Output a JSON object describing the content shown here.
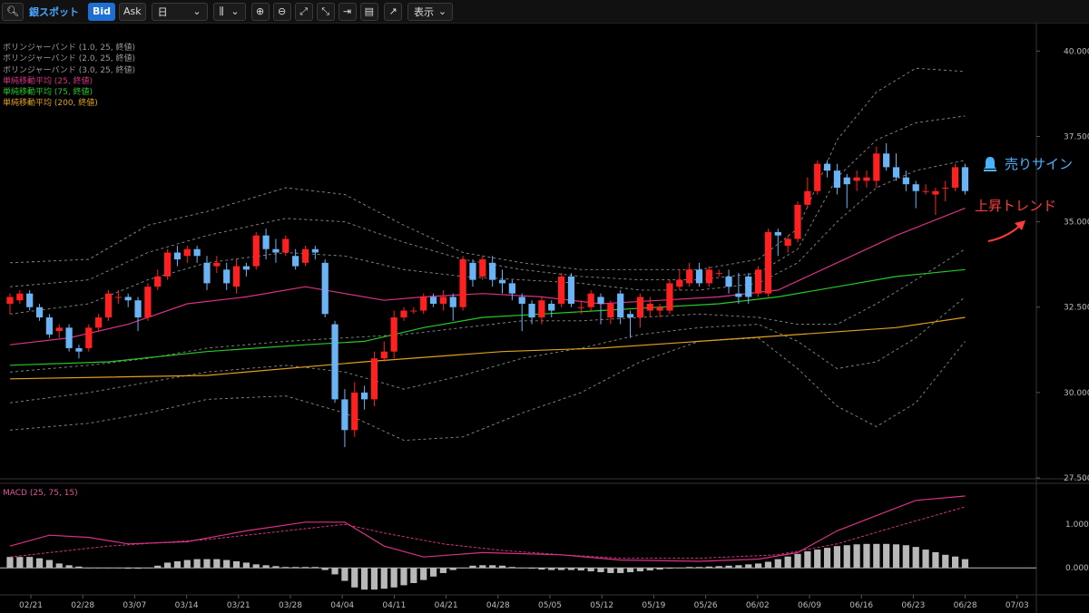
{
  "toolbar": {
    "instrument": "銀スポット",
    "bid": "Bid",
    "ask": "Ask",
    "interval": "日",
    "display": "表示"
  },
  "legend": [
    {
      "text": "ボリンジャーバンド (1.0, 25, 終値)",
      "color": "#9a9a9a"
    },
    {
      "text": "ボリンジャーバンド (2.0, 25, 終値)",
      "color": "#9a9a9a"
    },
    {
      "text": "ボリンジャーバンド (3.0, 25, 終値)",
      "color": "#9a9a9a"
    },
    {
      "text": "単純移動平均 (25, 終値)",
      "color": "#d63384"
    },
    {
      "text": "単純移動平均 (75, 終値)",
      "color": "#27c927"
    },
    {
      "text": "単純移動平均 (200, 終値)",
      "color": "#e0a020"
    }
  ],
  "macd_label": "MACD (25, 75, 15)",
  "annotations": {
    "sell_signal": "売りサイン",
    "uptrend": "上昇トレンド"
  },
  "colors": {
    "up": "#ff2020",
    "down": "#6ab4f5",
    "sma25": "#d63384",
    "sma75": "#27c927",
    "sma200": "#e0a020",
    "band": "#8a8a8a",
    "macd": "#d63384",
    "signal": "#d63384",
    "hist": "#b8b8b8"
  },
  "chart_data": {
    "type": "candlestick",
    "price_ylim": [
      27.5,
      40.7
    ],
    "price_ticks": [
      "27.500",
      "30.000",
      "32.500",
      "35.000",
      "37.500",
      "40.000"
    ],
    "macd_ylim": [
      -0.6,
      1.9
    ],
    "macd_ticks": [
      "0.000",
      "1.000"
    ],
    "x_ticks": [
      "02/21",
      "02/28",
      "03/07",
      "03/14",
      "03/21",
      "03/28",
      "04/04",
      "04/11",
      "04/21",
      "04/28",
      "05/05",
      "05/12",
      "05/19",
      "05/26",
      "06/02",
      "06/09",
      "06/16",
      "06/23",
      "06/28",
      "07/03"
    ],
    "candles": [
      [
        32.6,
        32.8,
        32.3,
        32.9
      ],
      [
        32.7,
        32.9,
        32.6,
        33.0
      ],
      [
        32.9,
        32.5,
        32.4,
        33.0
      ],
      [
        32.5,
        32.2,
        32.1,
        32.6
      ],
      [
        32.2,
        31.7,
        31.6,
        32.3
      ],
      [
        31.8,
        31.9,
        31.6,
        32.0
      ],
      [
        31.9,
        31.3,
        31.2,
        32.0
      ],
      [
        31.3,
        31.2,
        31.0,
        31.4
      ],
      [
        31.3,
        31.9,
        31.2,
        32.0
      ],
      [
        31.9,
        32.2,
        31.8,
        32.3
      ],
      [
        32.2,
        32.9,
        32.1,
        33.0
      ],
      [
        32.8,
        32.8,
        32.6,
        33.0
      ],
      [
        32.8,
        32.7,
        32.5,
        32.9
      ],
      [
        32.7,
        32.2,
        31.8,
        32.8
      ],
      [
        32.2,
        33.1,
        32.1,
        33.2
      ],
      [
        33.1,
        33.4,
        33.0,
        33.6
      ],
      [
        33.4,
        34.1,
        33.3,
        34.2
      ],
      [
        34.1,
        33.9,
        33.7,
        34.3
      ],
      [
        34.0,
        34.2,
        33.8,
        34.3
      ],
      [
        34.2,
        34.0,
        33.8,
        34.3
      ],
      [
        33.8,
        33.2,
        33.0,
        34.0
      ],
      [
        33.7,
        33.8,
        33.5,
        34.0
      ],
      [
        33.6,
        33.2,
        33.0,
        33.8
      ],
      [
        33.1,
        33.7,
        32.9,
        33.9
      ],
      [
        33.7,
        33.6,
        33.4,
        33.8
      ],
      [
        33.7,
        34.6,
        33.6,
        34.7
      ],
      [
        34.6,
        34.2,
        33.9,
        34.8
      ],
      [
        34.2,
        34.1,
        33.8,
        34.5
      ],
      [
        34.1,
        34.5,
        34.0,
        34.6
      ],
      [
        34.0,
        33.7,
        33.6,
        34.2
      ],
      [
        33.8,
        34.2,
        33.7,
        34.3
      ],
      [
        34.2,
        34.1,
        33.9,
        34.3
      ],
      [
        33.8,
        32.3,
        32.2,
        33.9
      ],
      [
        32.0,
        29.8,
        29.7,
        32.1
      ],
      [
        29.8,
        28.9,
        28.4,
        30.1
      ],
      [
        28.9,
        30.0,
        28.7,
        30.3
      ],
      [
        30.0,
        29.8,
        29.5,
        30.2
      ],
      [
        29.8,
        31.0,
        29.6,
        31.2
      ],
      [
        31.0,
        31.2,
        30.9,
        31.5
      ],
      [
        31.2,
        32.2,
        31.0,
        32.4
      ],
      [
        32.2,
        32.4,
        32.1,
        32.5
      ],
      [
        32.4,
        32.4,
        32.3,
        32.5
      ],
      [
        32.4,
        32.8,
        32.3,
        32.9
      ],
      [
        32.8,
        32.6,
        32.5,
        32.9
      ],
      [
        32.6,
        32.8,
        32.4,
        33.0
      ],
      [
        32.8,
        32.5,
        32.1,
        32.9
      ],
      [
        32.5,
        33.9,
        32.4,
        34.0
      ],
      [
        33.8,
        33.3,
        33.1,
        33.9
      ],
      [
        33.4,
        33.9,
        33.3,
        34.0
      ],
      [
        33.8,
        33.3,
        33.1,
        34.0
      ],
      [
        33.3,
        33.2,
        32.9,
        33.6
      ],
      [
        33.2,
        32.9,
        32.7,
        33.3
      ],
      [
        32.8,
        32.6,
        31.8,
        32.9
      ],
      [
        32.6,
        32.2,
        32.0,
        32.7
      ],
      [
        32.2,
        32.7,
        32.0,
        32.8
      ],
      [
        32.6,
        32.4,
        32.2,
        32.7
      ],
      [
        32.6,
        33.4,
        32.5,
        33.5
      ],
      [
        33.4,
        32.6,
        32.5,
        33.5
      ],
      [
        32.5,
        32.5,
        32.3,
        32.7
      ],
      [
        32.5,
        32.9,
        32.4,
        33.0
      ],
      [
        32.8,
        32.6,
        32.0,
        32.9
      ],
      [
        32.2,
        32.6,
        32.0,
        32.7
      ],
      [
        32.9,
        32.2,
        32.0,
        33.0
      ],
      [
        32.3,
        32.2,
        31.6,
        32.4
      ],
      [
        32.2,
        32.8,
        31.9,
        32.9
      ],
      [
        32.4,
        32.6,
        32.2,
        32.8
      ],
      [
        32.4,
        32.5,
        32.2,
        32.6
      ],
      [
        32.4,
        33.2,
        32.3,
        33.3
      ],
      [
        33.1,
        33.3,
        33.0,
        33.6
      ],
      [
        33.2,
        33.6,
        33.1,
        33.8
      ],
      [
        33.6,
        33.2,
        33.1,
        33.8
      ],
      [
        33.2,
        33.6,
        33.1,
        33.7
      ],
      [
        33.5,
        33.5,
        33.4,
        33.6
      ],
      [
        33.4,
        33.1,
        32.9,
        33.6
      ],
      [
        32.9,
        32.8,
        32.6,
        33.5
      ],
      [
        33.4,
        32.8,
        32.6,
        33.5
      ],
      [
        32.9,
        33.6,
        32.8,
        33.7
      ],
      [
        32.9,
        34.7,
        32.8,
        34.8
      ],
      [
        34.7,
        34.6,
        34.0,
        34.8
      ],
      [
        34.3,
        34.5,
        34.1,
        34.6
      ],
      [
        34.5,
        35.5,
        34.4,
        35.6
      ],
      [
        35.5,
        35.9,
        35.4,
        36.3
      ],
      [
        35.9,
        36.7,
        35.8,
        36.8
      ],
      [
        36.7,
        36.5,
        36.3,
        36.8
      ],
      [
        36.5,
        36.0,
        35.8,
        36.7
      ],
      [
        36.3,
        36.1,
        35.4,
        36.4
      ],
      [
        36.2,
        36.3,
        35.9,
        36.5
      ],
      [
        36.2,
        36.3,
        36.0,
        36.5
      ],
      [
        36.2,
        37.0,
        36.0,
        37.2
      ],
      [
        37.0,
        36.6,
        36.5,
        37.3
      ],
      [
        36.6,
        36.3,
        36.2,
        37.0
      ],
      [
        36.3,
        36.1,
        35.9,
        36.5
      ],
      [
        36.1,
        35.9,
        35.4,
        36.2
      ],
      [
        35.9,
        35.9,
        35.8,
        36.1
      ],
      [
        35.8,
        35.9,
        35.2,
        36.0
      ],
      [
        36.0,
        36.0,
        35.6,
        36.2
      ],
      [
        36.0,
        36.6,
        35.9,
        36.7
      ],
      [
        36.6,
        35.9,
        35.8,
        36.7
      ]
    ],
    "sma25_path": [
      [
        0,
        31.4
      ],
      [
        6,
        31.6
      ],
      [
        12,
        32.0
      ],
      [
        18,
        32.6
      ],
      [
        24,
        32.8
      ],
      [
        30,
        33.1
      ],
      [
        34,
        32.9
      ],
      [
        38,
        32.7
      ],
      [
        42,
        32.8
      ],
      [
        48,
        32.9
      ],
      [
        54,
        32.8
      ],
      [
        60,
        32.6
      ],
      [
        66,
        32.7
      ],
      [
        72,
        32.8
      ],
      [
        78,
        33.0
      ],
      [
        84,
        33.8
      ],
      [
        90,
        34.6
      ],
      [
        97,
        35.4
      ]
    ],
    "sma75_path": [
      [
        0,
        30.8
      ],
      [
        10,
        30.9
      ],
      [
        20,
        31.2
      ],
      [
        30,
        31.4
      ],
      [
        36,
        31.5
      ],
      [
        42,
        31.9
      ],
      [
        48,
        32.2
      ],
      [
        54,
        32.3
      ],
      [
        60,
        32.4
      ],
      [
        66,
        32.5
      ],
      [
        72,
        32.6
      ],
      [
        78,
        32.8
      ],
      [
        84,
        33.1
      ],
      [
        90,
        33.4
      ],
      [
        97,
        33.6
      ]
    ],
    "sma200_path": [
      [
        0,
        30.4
      ],
      [
        20,
        30.5
      ],
      [
        36,
        30.9
      ],
      [
        50,
        31.2
      ],
      [
        60,
        31.3
      ],
      [
        70,
        31.5
      ],
      [
        80,
        31.7
      ],
      [
        90,
        31.9
      ],
      [
        97,
        32.2
      ]
    ],
    "bb_upper3_path": [
      [
        0,
        33.8
      ],
      [
        8,
        33.9
      ],
      [
        14,
        34.9
      ],
      [
        20,
        35.3
      ],
      [
        28,
        36.0
      ],
      [
        34,
        35.8
      ],
      [
        40,
        34.9
      ],
      [
        46,
        34.1
      ],
      [
        52,
        33.8
      ],
      [
        58,
        33.6
      ],
      [
        64,
        33.6
      ],
      [
        70,
        33.6
      ],
      [
        76,
        33.9
      ],
      [
        80,
        34.8
      ],
      [
        84,
        37.4
      ],
      [
        88,
        38.8
      ],
      [
        92,
        39.5
      ],
      [
        97,
        39.4
      ]
    ],
    "bb_upper2_path": [
      [
        0,
        33.1
      ],
      [
        8,
        33.3
      ],
      [
        14,
        34.1
      ],
      [
        20,
        34.6
      ],
      [
        28,
        35.1
      ],
      [
        34,
        35.0
      ],
      [
        40,
        34.4
      ],
      [
        46,
        33.9
      ],
      [
        52,
        33.6
      ],
      [
        58,
        33.4
      ],
      [
        64,
        33.3
      ],
      [
        70,
        33.3
      ],
      [
        76,
        33.5
      ],
      [
        80,
        34.2
      ],
      [
        84,
        36.3
      ],
      [
        88,
        37.4
      ],
      [
        92,
        37.9
      ],
      [
        97,
        38.1
      ]
    ],
    "bb_upper1_path": [
      [
        0,
        32.3
      ],
      [
        8,
        32.6
      ],
      [
        14,
        33.3
      ],
      [
        20,
        33.8
      ],
      [
        28,
        34.1
      ],
      [
        34,
        34.0
      ],
      [
        40,
        33.6
      ],
      [
        46,
        33.4
      ],
      [
        52,
        33.3
      ],
      [
        58,
        33.2
      ],
      [
        64,
        33.0
      ],
      [
        70,
        33.0
      ],
      [
        76,
        33.2
      ],
      [
        80,
        33.8
      ],
      [
        84,
        35.0
      ],
      [
        88,
        36.0
      ],
      [
        92,
        36.5
      ],
      [
        97,
        36.8
      ]
    ],
    "bb_lower1_path": [
      [
        0,
        30.6
      ],
      [
        8,
        30.8
      ],
      [
        14,
        31.0
      ],
      [
        20,
        31.3
      ],
      [
        28,
        31.5
      ],
      [
        34,
        31.6
      ],
      [
        40,
        31.7
      ],
      [
        46,
        31.9
      ],
      [
        52,
        32.1
      ],
      [
        58,
        32.1
      ],
      [
        64,
        32.2
      ],
      [
        70,
        32.3
      ],
      [
        76,
        32.2
      ],
      [
        80,
        32.0
      ],
      [
        84,
        32.0
      ],
      [
        88,
        32.6
      ],
      [
        92,
        33.3
      ],
      [
        97,
        34.2
      ]
    ],
    "bb_lower2_path": [
      [
        0,
        29.7
      ],
      [
        8,
        30.0
      ],
      [
        14,
        30.3
      ],
      [
        20,
        30.6
      ],
      [
        28,
        30.8
      ],
      [
        34,
        30.6
      ],
      [
        40,
        30.1
      ],
      [
        46,
        30.5
      ],
      [
        52,
        31.0
      ],
      [
        58,
        31.3
      ],
      [
        64,
        31.7
      ],
      [
        70,
        31.9
      ],
      [
        76,
        32.0
      ],
      [
        80,
        31.5
      ],
      [
        84,
        30.7
      ],
      [
        88,
        30.9
      ],
      [
        92,
        31.6
      ],
      [
        97,
        32.8
      ]
    ],
    "bb_lower3_path": [
      [
        0,
        28.9
      ],
      [
        8,
        29.1
      ],
      [
        14,
        29.4
      ],
      [
        20,
        29.8
      ],
      [
        28,
        29.9
      ],
      [
        34,
        29.4
      ],
      [
        40,
        28.6
      ],
      [
        46,
        28.7
      ],
      [
        52,
        29.4
      ],
      [
        58,
        30.0
      ],
      [
        64,
        30.9
      ],
      [
        70,
        31.5
      ],
      [
        76,
        31.6
      ],
      [
        80,
        30.7
      ],
      [
        84,
        29.6
      ],
      [
        88,
        29.0
      ],
      [
        92,
        29.7
      ],
      [
        97,
        31.5
      ]
    ],
    "macd_path": [
      [
        0,
        0.5
      ],
      [
        4,
        0.75
      ],
      [
        8,
        0.7
      ],
      [
        12,
        0.55
      ],
      [
        18,
        0.6
      ],
      [
        24,
        0.85
      ],
      [
        30,
        1.05
      ],
      [
        34,
        1.05
      ],
      [
        38,
        0.5
      ],
      [
        42,
        0.25
      ],
      [
        48,
        0.35
      ],
      [
        56,
        0.3
      ],
      [
        62,
        0.18
      ],
      [
        70,
        0.15
      ],
      [
        76,
        0.2
      ],
      [
        80,
        0.35
      ],
      [
        84,
        0.85
      ],
      [
        88,
        1.2
      ],
      [
        92,
        1.55
      ],
      [
        97,
        1.65
      ]
    ],
    "signal_path": [
      [
        0,
        0.25
      ],
      [
        10,
        0.5
      ],
      [
        20,
        0.65
      ],
      [
        30,
        0.9
      ],
      [
        34,
        1.0
      ],
      [
        38,
        0.8
      ],
      [
        44,
        0.55
      ],
      [
        50,
        0.4
      ],
      [
        56,
        0.3
      ],
      [
        62,
        0.22
      ],
      [
        70,
        0.22
      ],
      [
        78,
        0.3
      ],
      [
        84,
        0.55
      ],
      [
        90,
        0.95
      ],
      [
        97,
        1.4
      ]
    ],
    "hist": [
      0.25,
      0.25,
      0.25,
      0.22,
      0.18,
      0.1,
      0.06,
      0.03,
      0.0,
      0.0,
      0.0,
      0.0,
      -0.02,
      -0.02,
      0.0,
      0.05,
      0.12,
      0.15,
      0.18,
      0.2,
      0.2,
      0.2,
      0.18,
      0.15,
      0.12,
      0.08,
      0.06,
      0.04,
      0.02,
      0.02,
      0.02,
      0.02,
      -0.05,
      -0.15,
      -0.3,
      -0.45,
      -0.5,
      -0.5,
      -0.48,
      -0.45,
      -0.4,
      -0.35,
      -0.28,
      -0.2,
      -0.12,
      -0.05,
      0.0,
      0.05,
      0.06,
      0.06,
      0.05,
      0.02,
      0.0,
      -0.02,
      -0.04,
      -0.05,
      -0.05,
      -0.05,
      -0.06,
      -0.08,
      -0.1,
      -0.12,
      -0.12,
      -0.1,
      -0.08,
      -0.06,
      -0.04,
      -0.02,
      0.0,
      0.02,
      0.02,
      0.03,
      0.04,
      0.05,
      0.06,
      0.08,
      0.1,
      0.14,
      0.2,
      0.26,
      0.32,
      0.38,
      0.42,
      0.46,
      0.5,
      0.52,
      0.54,
      0.55,
      0.55,
      0.55,
      0.54,
      0.52,
      0.48,
      0.42,
      0.36,
      0.3,
      0.26,
      0.2
    ]
  }
}
